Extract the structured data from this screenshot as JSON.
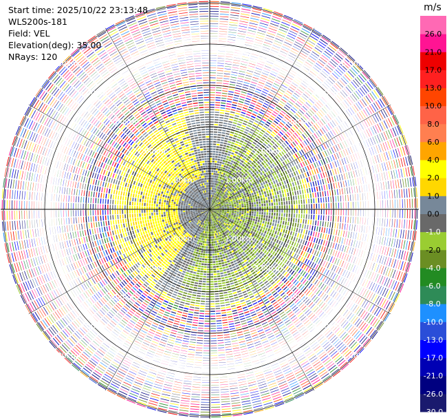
{
  "header": {
    "start_time": "Start time: 2025/10/22 23:13:48",
    "instrument": "WLS200s-181",
    "field": "Field: VEL",
    "elevation": "Elevation(deg): 35.00",
    "nrays": "NRays: 120"
  },
  "chart_data": {
    "type": "heatmap",
    "subtype": "radar-ppi",
    "field": "VEL",
    "units": "m/s",
    "elevation_deg": 35.0,
    "nrays": 120,
    "range_rings_km": [
      1.0,
      2.0,
      3.0,
      4.0,
      5.0
    ],
    "range_ring_labels": [
      "1.00km",
      "2.00km",
      "3.00km",
      "4.00km",
      "5.00km"
    ],
    "colorbar": {
      "title": "m/s",
      "bounds": [
        -30.0,
        -26.0,
        -21.0,
        -17.0,
        -13.0,
        -10.0,
        -8.0,
        -6.0,
        -4.0,
        -2.0,
        -1.0,
        0.0,
        1.0,
        2.0,
        4.0,
        6.0,
        8.0,
        10.0,
        13.0,
        17.0,
        21.0,
        26.0
      ],
      "tick_labels": [
        "-30.0",
        "-26.0",
        "-21.0",
        "-17.0",
        "-13.0",
        "-10.0",
        "-8.0",
        "-6.0",
        "-4.0",
        "-2.0",
        "-1.0",
        "0.0",
        "1.0",
        "2.0",
        "4.0",
        "6.0",
        "8.0",
        "10.0",
        "13.0",
        "17.0",
        "21.0",
        "26.0"
      ],
      "colors": [
        "#1a1a6e",
        "#000080",
        "#0000b4",
        "#0000ff",
        "#2a4ed8",
        "#1e90ff",
        "#2e8b57",
        "#228b22",
        "#6b8e23",
        "#9acd32",
        "#696969",
        "#778899",
        "#ffd700",
        "#ffff00",
        "#ffa500",
        "#ff7f50",
        "#ff6347",
        "#ff4500",
        "#ff2020",
        "#ee0000",
        "#ff1493",
        "#ff69b4"
      ]
    },
    "data_summary": "Approximate velocity field: near-zero (grey) and slightly negative (green) radial velocities within ~2.3 km, small positive (yellow) velocities to the north-west, noisy multicoloured returns beyond ~2.4 km."
  }
}
